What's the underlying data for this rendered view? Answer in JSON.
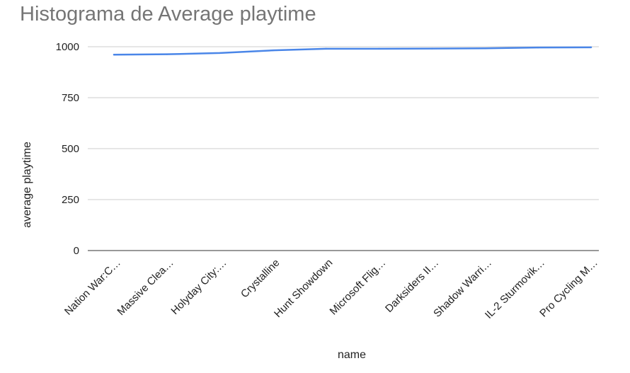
{
  "chart_data": {
    "type": "line",
    "title": "Histograma de Average playtime",
    "xlabel": "name",
    "ylabel": "average playtime",
    "categories": [
      "Nation War:C…",
      "Massive Clea…",
      "Holyday City:…",
      "Crystalline",
      "Hunt Showdown",
      "Microsoft Flig…",
      "Darksiders II…",
      "Shadow Warri…",
      "IL-2 Sturmovik…",
      "Pro Cycling M…"
    ],
    "series": [
      {
        "values": [
          961,
          963,
          969,
          982,
          990,
          990,
          991,
          992,
          996,
          997
        ]
      }
    ],
    "ylim": [
      0,
      1000
    ],
    "yticks": [
      0,
      250,
      500,
      750,
      1000
    ],
    "grid": true,
    "legend": "none",
    "line_color": "#4a86e8"
  }
}
